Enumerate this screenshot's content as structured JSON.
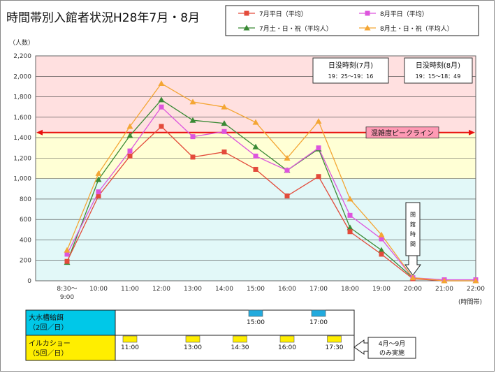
{
  "title": "時間帯別入館者状況H28年7月・8月",
  "colors": {
    "pink_band": "#ffe0e0",
    "yellow_band": "#ffffd5",
    "cyan_band": "#e2f8f8",
    "peak_line": "#e8100f",
    "peak_label_bg": "#ff9ab4",
    "feeding_bg": "#00c8e8",
    "dolphin_bg": "#ffee00",
    "feeding_mark": "#22aadd",
    "dolphin_mark": "#ffee00"
  },
  "chart_data": {
    "type": "line",
    "title": "時間帯別入館者状況H28年7月・8月",
    "ylabel": "（人数）",
    "xlabel": "(時間帯)",
    "ylim": [
      0,
      2200
    ],
    "y_ticks": [
      "0",
      "200",
      "400",
      "600",
      "800",
      "1,000",
      "1,200",
      "1,400",
      "1,600",
      "1,800",
      "2,000",
      "2,200"
    ],
    "categories": [
      "8:30〜\n9:00",
      "10:00",
      "11:00",
      "12:00",
      "13:00",
      "14:00",
      "15:00",
      "16:00",
      "17:00",
      "18:00",
      "19:00",
      "20:00",
      "21:00",
      "22:00"
    ],
    "category_lines": [
      [
        "8:30〜",
        "9:00"
      ],
      [
        "10:00"
      ],
      [
        "11:00"
      ],
      [
        "12:00"
      ],
      [
        "13:00"
      ],
      [
        "14:00"
      ],
      [
        "15:00"
      ],
      [
        "16:00"
      ],
      [
        "17:00"
      ],
      [
        "18:00"
      ],
      [
        "19:00"
      ],
      [
        "20:00"
      ],
      [
        "21:00"
      ],
      [
        "22:00"
      ]
    ],
    "grid": true,
    "legend_position": "top-right",
    "series": [
      {
        "name": "7月平日（平均）",
        "color": "#e34b3b",
        "marker": "square",
        "values": [
          190,
          830,
          1220,
          1510,
          1210,
          1260,
          1090,
          830,
          1020,
          480,
          260,
          20,
          0,
          0
        ]
      },
      {
        "name": "8月平日（平均）",
        "color": "#dd55dd",
        "marker": "square",
        "values": [
          260,
          870,
          1270,
          1700,
          1410,
          1460,
          1220,
          1080,
          1300,
          640,
          410,
          30,
          10,
          10
        ]
      },
      {
        "name": "7月土・日・祝（平均人）",
        "color": "#3a8a35",
        "marker": "triangle",
        "values": [
          180,
          990,
          1420,
          1770,
          1570,
          1540,
          1310,
          1080,
          1290,
          520,
          300,
          30,
          0,
          0
        ]
      },
      {
        "name": "8月土・日・祝（平均人）",
        "color": "#f4a634",
        "marker": "triangle",
        "values": [
          300,
          1050,
          1510,
          1930,
          1750,
          1700,
          1550,
          1200,
          1560,
          800,
          450,
          30,
          0,
          0
        ]
      }
    ],
    "bands": [
      {
        "from": 1450,
        "to": 2200,
        "color": "pink"
      },
      {
        "from": 1000,
        "to": 1450,
        "color": "yellow"
      },
      {
        "from": 0,
        "to": 1000,
        "color": "cyan"
      }
    ],
    "peak_line": {
      "value": 1450,
      "label": "混雑度ピークライン"
    },
    "annotations": {
      "sunset_jul": {
        "title": "日没時刻(7月)",
        "range": "19：25〜19：16"
      },
      "sunset_aug": {
        "title": "日没時刻(8月)",
        "range": "19：15〜18：49"
      },
      "closing": {
        "text": "閉館時間",
        "at_category": "20:00"
      }
    }
  },
  "schedule": {
    "feeding": {
      "label_line1": "大水槽給餌",
      "label_line2": "（2回／日）",
      "times": [
        "15:00",
        "17:00"
      ]
    },
    "dolphin": {
      "label_line1": "イルカショー",
      "label_line2": "（5回／日）",
      "times": [
        "11:00",
        "13:00",
        "14:30",
        "16:00",
        "17:30"
      ]
    },
    "note_line1": "4月〜9月",
    "note_line2": "のみ実施"
  }
}
